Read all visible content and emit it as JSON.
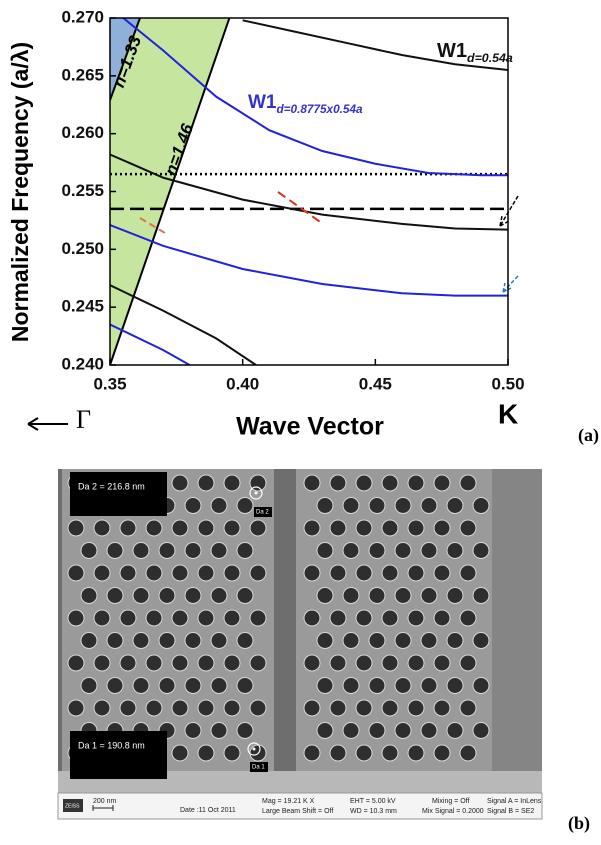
{
  "chart_data": {
    "type": "line",
    "x_label": "Wave Vector",
    "y_label": "Normalized Frequency (a/λ)",
    "xlim": [
      0.35,
      0.5
    ],
    "ylim": [
      0.24,
      0.27
    ],
    "xticks": [
      0.35,
      {
        "value": 0.4,
        "label": "0.40"
      },
      0.45,
      {
        "value": 0.5,
        "label": "0.50"
      }
    ],
    "yticks": [
      {
        "value": 0.24,
        "label": "0.240"
      },
      0.245,
      {
        "value": 0.25,
        "label": "0.250"
      },
      0.255,
      {
        "value": 0.26,
        "label": "0.260"
      },
      0.265,
      {
        "value": 0.27,
        "label": "0.270"
      }
    ],
    "x_end_labels": [
      "Γ",
      "K"
    ],
    "series": [
      {
        "color": "#111111",
        "x": [
          0.4,
          0.42,
          0.44,
          0.46,
          0.48,
          0.5
        ],
        "values": [
          0.2698,
          0.2688,
          0.2678,
          0.2668,
          0.266,
          0.2655
        ]
      },
      {
        "color": "#2222dd",
        "x": [
          0.355,
          0.37,
          0.39,
          0.41,
          0.43,
          0.45,
          0.47,
          0.49,
          0.5
        ],
        "values": [
          0.27,
          0.2672,
          0.2632,
          0.2603,
          0.2585,
          0.2574,
          0.2566,
          0.2564,
          0.2564
        ]
      },
      {
        "color": "#111111",
        "x": [
          0.35,
          0.37,
          0.4,
          0.43,
          0.46,
          0.48,
          0.5
        ],
        "values": [
          0.2582,
          0.2562,
          0.2543,
          0.253,
          0.2522,
          0.2518,
          0.2517
        ]
      },
      {
        "color": "#2222dd",
        "x": [
          0.35,
          0.37,
          0.4,
          0.43,
          0.46,
          0.48,
          0.5
        ],
        "values": [
          0.2521,
          0.2503,
          0.2483,
          0.247,
          0.2462,
          0.246,
          0.246
        ]
      },
      {
        "color": "#111111",
        "x": [
          0.35,
          0.37,
          0.39,
          0.405
        ],
        "values": [
          0.2469,
          0.2447,
          0.2423,
          0.24
        ]
      },
      {
        "color": "#2222dd",
        "x": [
          0.35,
          0.37,
          0.38
        ],
        "values": [
          0.2435,
          0.2413,
          0.24
        ]
      }
    ],
    "light_lines": [
      {
        "label": "n=1.46",
        "color": "#c6e6a0",
        "x": [
          0.35,
          0.395
        ],
        "values": [
          0.24,
          0.27
        ]
      },
      {
        "label": "n=1.33",
        "color": "#8fb0d8",
        "x": [
          0.35,
          0.3613
        ],
        "values": [
          0.2629,
          0.27
        ]
      }
    ],
    "hlines": [
      {
        "value": 0.2565,
        "style": "dotted"
      },
      {
        "value": 0.2535,
        "style": "dashed"
      }
    ],
    "annotations": [
      {
        "text": "W1",
        "sub": "d=0.54a",
        "color": "#111111"
      },
      {
        "text": "W1",
        "sub": "d=0.8775x0.54a",
        "color": "#3333cc"
      }
    ]
  },
  "panel_labels": [
    "(a)",
    "(b)"
  ],
  "sem": {
    "measurements": [
      "Da 2 = 216.8 nm",
      "Da 1 = 190.8 nm"
    ],
    "markers": [
      "Da 2",
      "Da 1"
    ],
    "info": [
      "ZEISS",
      "200 nm",
      "Date :11 Oct 2011",
      "Mag = 19.21 K X",
      "Large Beam Shift = Off",
      "EHT = 5.00 kV",
      "WD = 10.3 mm",
      "Mixing = Off",
      "Mix Signal = 0.2000",
      "Signal A = InLens",
      "Signal B = SE2"
    ]
  }
}
